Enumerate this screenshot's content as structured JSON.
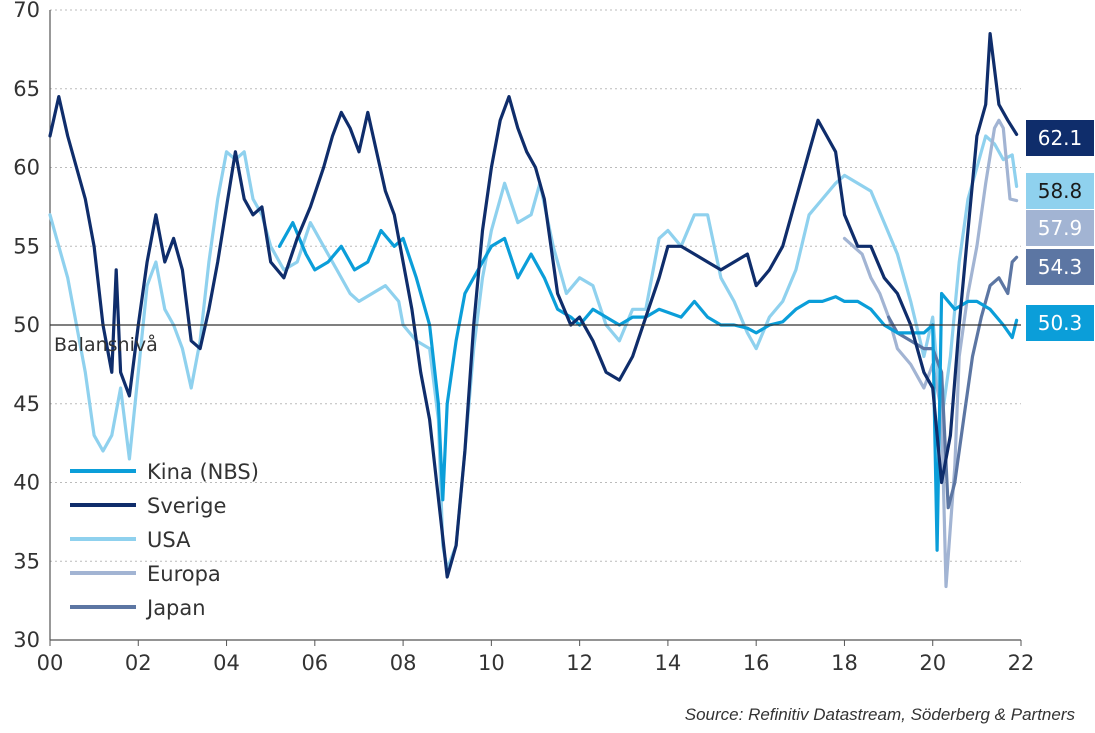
{
  "chart_data": {
    "type": "line",
    "x_ticks": [
      "00",
      "02",
      "04",
      "06",
      "08",
      "10",
      "12",
      "14",
      "16",
      "18",
      "20",
      "22"
    ],
    "y_ticks": [
      30,
      35,
      40,
      45,
      50,
      55,
      60,
      65,
      70
    ],
    "xlim": [
      2000,
      2022
    ],
    "ylim": [
      30,
      70
    ],
    "reference_line": {
      "value": 50,
      "label": "Balansnivå"
    },
    "grid": "horizontal dotted",
    "legend_position": "bottom-left",
    "source": "Source: Refinitiv Datastream, Söderberg & Partners",
    "series": [
      {
        "name": "Kina (NBS)",
        "color": "#0B9ED9",
        "end_value": "50.3",
        "points": [
          [
            2005.2,
            55.0
          ],
          [
            2005.5,
            56.5
          ],
          [
            2005.8,
            54.5
          ],
          [
            2006.0,
            53.5
          ],
          [
            2006.3,
            54.0
          ],
          [
            2006.6,
            55.0
          ],
          [
            2006.9,
            53.5
          ],
          [
            2007.2,
            54.0
          ],
          [
            2007.5,
            56.0
          ],
          [
            2007.8,
            55.0
          ],
          [
            2008.0,
            55.5
          ],
          [
            2008.3,
            53.0
          ],
          [
            2008.6,
            50.0
          ],
          [
            2008.8,
            45.0
          ],
          [
            2008.9,
            38.9
          ],
          [
            2009.0,
            45.0
          ],
          [
            2009.2,
            49.0
          ],
          [
            2009.4,
            52.0
          ],
          [
            2009.7,
            53.5
          ],
          [
            2010.0,
            55.0
          ],
          [
            2010.3,
            55.5
          ],
          [
            2010.6,
            53.0
          ],
          [
            2010.9,
            54.5
          ],
          [
            2011.2,
            53.0
          ],
          [
            2011.5,
            51.0
          ],
          [
            2011.8,
            50.5
          ],
          [
            2012.0,
            50.0
          ],
          [
            2012.3,
            51.0
          ],
          [
            2012.6,
            50.5
          ],
          [
            2012.9,
            50.0
          ],
          [
            2013.2,
            50.5
          ],
          [
            2013.5,
            50.5
          ],
          [
            2013.8,
            51.0
          ],
          [
            2014.0,
            50.8
          ],
          [
            2014.3,
            50.5
          ],
          [
            2014.6,
            51.5
          ],
          [
            2014.9,
            50.5
          ],
          [
            2015.2,
            50.0
          ],
          [
            2015.5,
            50.0
          ],
          [
            2015.8,
            49.8
          ],
          [
            2016.0,
            49.5
          ],
          [
            2016.3,
            50.0
          ],
          [
            2016.6,
            50.2
          ],
          [
            2016.9,
            51.0
          ],
          [
            2017.2,
            51.5
          ],
          [
            2017.5,
            51.5
          ],
          [
            2017.8,
            51.8
          ],
          [
            2018.0,
            51.5
          ],
          [
            2018.3,
            51.5
          ],
          [
            2018.6,
            51.0
          ],
          [
            2018.9,
            50.0
          ],
          [
            2019.2,
            49.5
          ],
          [
            2019.5,
            49.5
          ],
          [
            2019.8,
            49.5
          ],
          [
            2020.0,
            50.0
          ],
          [
            2020.1,
            35.7
          ],
          [
            2020.2,
            52.0
          ],
          [
            2020.5,
            51.0
          ],
          [
            2020.8,
            51.5
          ],
          [
            2021.0,
            51.5
          ],
          [
            2021.3,
            51.0
          ],
          [
            2021.6,
            50.0
          ],
          [
            2021.8,
            49.2
          ],
          [
            2021.9,
            50.3
          ]
        ]
      },
      {
        "name": "Sverige",
        "color": "#0F2D6B",
        "end_value": "62.1",
        "points": [
          [
            2000.0,
            62.0
          ],
          [
            2000.2,
            64.5
          ],
          [
            2000.4,
            62.0
          ],
          [
            2000.6,
            60.0
          ],
          [
            2000.8,
            58.0
          ],
          [
            2001.0,
            55.0
          ],
          [
            2001.2,
            50.0
          ],
          [
            2001.4,
            47.0
          ],
          [
            2001.5,
            53.5
          ],
          [
            2001.6,
            47.0
          ],
          [
            2001.8,
            45.5
          ],
          [
            2002.0,
            50.0
          ],
          [
            2002.2,
            54.0
          ],
          [
            2002.4,
            57.0
          ],
          [
            2002.6,
            54.0
          ],
          [
            2002.8,
            55.5
          ],
          [
            2003.0,
            53.5
          ],
          [
            2003.2,
            49.0
          ],
          [
            2003.4,
            48.5
          ],
          [
            2003.6,
            51.0
          ],
          [
            2003.8,
            54.0
          ],
          [
            2004.0,
            57.5
          ],
          [
            2004.2,
            61.0
          ],
          [
            2004.4,
            58.0
          ],
          [
            2004.6,
            57.0
          ],
          [
            2004.8,
            57.5
          ],
          [
            2005.0,
            54.0
          ],
          [
            2005.3,
            53.0
          ],
          [
            2005.6,
            55.5
          ],
          [
            2005.9,
            57.5
          ],
          [
            2006.2,
            60.0
          ],
          [
            2006.4,
            62.0
          ],
          [
            2006.6,
            63.5
          ],
          [
            2006.8,
            62.5
          ],
          [
            2007.0,
            61.0
          ],
          [
            2007.2,
            63.5
          ],
          [
            2007.4,
            61.0
          ],
          [
            2007.6,
            58.5
          ],
          [
            2007.8,
            57.0
          ],
          [
            2008.0,
            54.0
          ],
          [
            2008.2,
            51.0
          ],
          [
            2008.4,
            47.0
          ],
          [
            2008.6,
            44.0
          ],
          [
            2008.8,
            39.0
          ],
          [
            2009.0,
            34.0
          ],
          [
            2009.2,
            36.0
          ],
          [
            2009.4,
            42.0
          ],
          [
            2009.6,
            50.0
          ],
          [
            2009.8,
            56.0
          ],
          [
            2010.0,
            60.0
          ],
          [
            2010.2,
            63.0
          ],
          [
            2010.4,
            64.5
          ],
          [
            2010.6,
            62.5
          ],
          [
            2010.8,
            61.0
          ],
          [
            2011.0,
            60.0
          ],
          [
            2011.2,
            58.0
          ],
          [
            2011.5,
            52.0
          ],
          [
            2011.8,
            50.0
          ],
          [
            2012.0,
            50.5
          ],
          [
            2012.3,
            49.0
          ],
          [
            2012.6,
            47.0
          ],
          [
            2012.9,
            46.5
          ],
          [
            2013.2,
            48.0
          ],
          [
            2013.5,
            50.5
          ],
          [
            2013.8,
            53.0
          ],
          [
            2014.0,
            55.0
          ],
          [
            2014.3,
            55.0
          ],
          [
            2014.6,
            54.5
          ],
          [
            2014.9,
            54.0
          ],
          [
            2015.2,
            53.5
          ],
          [
            2015.5,
            54.0
          ],
          [
            2015.8,
            54.5
          ],
          [
            2016.0,
            52.5
          ],
          [
            2016.3,
            53.5
          ],
          [
            2016.6,
            55.0
          ],
          [
            2016.9,
            58.0
          ],
          [
            2017.2,
            61.0
          ],
          [
            2017.4,
            63.0
          ],
          [
            2017.6,
            62.0
          ],
          [
            2017.8,
            61.0
          ],
          [
            2018.0,
            57.0
          ],
          [
            2018.3,
            55.0
          ],
          [
            2018.6,
            55.0
          ],
          [
            2018.9,
            53.0
          ],
          [
            2019.2,
            52.0
          ],
          [
            2019.5,
            50.0
          ],
          [
            2019.8,
            47.0
          ],
          [
            2020.0,
            46.0
          ],
          [
            2020.2,
            40.0
          ],
          [
            2020.4,
            43.0
          ],
          [
            2020.6,
            50.0
          ],
          [
            2020.8,
            56.0
          ],
          [
            2021.0,
            62.0
          ],
          [
            2021.2,
            64.0
          ],
          [
            2021.3,
            68.5
          ],
          [
            2021.5,
            64.0
          ],
          [
            2021.7,
            63.0
          ],
          [
            2021.9,
            62.1
          ]
        ]
      },
      {
        "name": "USA",
        "color": "#8FD1EE",
        "end_value": "58.8",
        "points": [
          [
            2000.0,
            57.0
          ],
          [
            2000.2,
            55.0
          ],
          [
            2000.4,
            53.0
          ],
          [
            2000.6,
            50.0
          ],
          [
            2000.8,
            47.0
          ],
          [
            2001.0,
            43.0
          ],
          [
            2001.2,
            42.0
          ],
          [
            2001.4,
            43.0
          ],
          [
            2001.6,
            46.0
          ],
          [
            2001.8,
            41.5
          ],
          [
            2002.0,
            47.0
          ],
          [
            2002.2,
            52.5
          ],
          [
            2002.4,
            54.0
          ],
          [
            2002.6,
            51.0
          ],
          [
            2002.8,
            50.0
          ],
          [
            2003.0,
            48.5
          ],
          [
            2003.2,
            46.0
          ],
          [
            2003.4,
            49.0
          ],
          [
            2003.6,
            54.0
          ],
          [
            2003.8,
            58.0
          ],
          [
            2004.0,
            61.0
          ],
          [
            2004.2,
            60.5
          ],
          [
            2004.4,
            61.0
          ],
          [
            2004.6,
            58.0
          ],
          [
            2004.8,
            57.0
          ],
          [
            2005.0,
            55.0
          ],
          [
            2005.3,
            53.5
          ],
          [
            2005.6,
            54.0
          ],
          [
            2005.9,
            56.5
          ],
          [
            2006.2,
            55.0
          ],
          [
            2006.5,
            53.5
          ],
          [
            2006.8,
            52.0
          ],
          [
            2007.0,
            51.5
          ],
          [
            2007.3,
            52.0
          ],
          [
            2007.6,
            52.5
          ],
          [
            2007.9,
            51.5
          ],
          [
            2008.0,
            50.0
          ],
          [
            2008.3,
            49.0
          ],
          [
            2008.6,
            48.5
          ],
          [
            2008.8,
            44.0
          ],
          [
            2008.9,
            36.0
          ],
          [
            2009.0,
            34.5
          ],
          [
            2009.2,
            36.0
          ],
          [
            2009.4,
            42.0
          ],
          [
            2009.6,
            48.5
          ],
          [
            2009.8,
            53.0
          ],
          [
            2010.0,
            56.0
          ],
          [
            2010.3,
            59.0
          ],
          [
            2010.6,
            56.5
          ],
          [
            2010.9,
            57.0
          ],
          [
            2011.1,
            59.0
          ],
          [
            2011.4,
            55.0
          ],
          [
            2011.7,
            52.0
          ],
          [
            2012.0,
            53.0
          ],
          [
            2012.3,
            52.5
          ],
          [
            2012.6,
            50.0
          ],
          [
            2012.9,
            49.0
          ],
          [
            2013.2,
            51.0
          ],
          [
            2013.5,
            51.0
          ],
          [
            2013.8,
            55.5
          ],
          [
            2014.0,
            56.0
          ],
          [
            2014.3,
            55.0
          ],
          [
            2014.6,
            57.0
          ],
          [
            2014.9,
            57.0
          ],
          [
            2015.2,
            53.0
          ],
          [
            2015.5,
            51.5
          ],
          [
            2015.8,
            49.5
          ],
          [
            2016.0,
            48.5
          ],
          [
            2016.3,
            50.5
          ],
          [
            2016.6,
            51.5
          ],
          [
            2016.9,
            53.5
          ],
          [
            2017.2,
            57.0
          ],
          [
            2017.5,
            58.0
          ],
          [
            2017.8,
            59.0
          ],
          [
            2018.0,
            59.5
          ],
          [
            2018.3,
            59.0
          ],
          [
            2018.6,
            58.5
          ],
          [
            2018.9,
            56.5
          ],
          [
            2019.2,
            54.5
          ],
          [
            2019.5,
            51.5
          ],
          [
            2019.8,
            48.0
          ],
          [
            2020.0,
            50.5
          ],
          [
            2020.2,
            44.0
          ],
          [
            2020.4,
            48.0
          ],
          [
            2020.6,
            54.0
          ],
          [
            2020.8,
            58.0
          ],
          [
            2021.0,
            60.0
          ],
          [
            2021.2,
            62.0
          ],
          [
            2021.4,
            61.5
          ],
          [
            2021.6,
            60.5
          ],
          [
            2021.8,
            60.8
          ],
          [
            2021.9,
            58.8
          ]
        ]
      },
      {
        "name": "Europa",
        "color": "#A2B4D3",
        "end_value": "57.9",
        "points": [
          [
            2018.0,
            55.5
          ],
          [
            2018.2,
            55.0
          ],
          [
            2018.4,
            54.5
          ],
          [
            2018.6,
            53.0
          ],
          [
            2018.8,
            52.0
          ],
          [
            2019.0,
            50.5
          ],
          [
            2019.2,
            48.5
          ],
          [
            2019.5,
            47.5
          ],
          [
            2019.8,
            46.0
          ],
          [
            2020.0,
            47.5
          ],
          [
            2020.2,
            44.5
          ],
          [
            2020.3,
            33.4
          ],
          [
            2020.5,
            41.0
          ],
          [
            2020.6,
            48.0
          ],
          [
            2020.8,
            52.0
          ],
          [
            2021.0,
            55.0
          ],
          [
            2021.2,
            59.0
          ],
          [
            2021.4,
            62.5
          ],
          [
            2021.5,
            63.0
          ],
          [
            2021.6,
            62.5
          ],
          [
            2021.75,
            58.0
          ],
          [
            2021.9,
            57.9
          ]
        ]
      },
      {
        "name": "Japan",
        "color": "#5C76A3",
        "end_value": "54.3",
        "points": [
          [
            2019.0,
            50.5
          ],
          [
            2019.2,
            49.5
          ],
          [
            2019.5,
            49.0
          ],
          [
            2019.8,
            48.5
          ],
          [
            2020.0,
            48.5
          ],
          [
            2020.2,
            47.0
          ],
          [
            2020.35,
            38.4
          ],
          [
            2020.5,
            40.0
          ],
          [
            2020.7,
            44.0
          ],
          [
            2020.9,
            48.0
          ],
          [
            2021.1,
            50.5
          ],
          [
            2021.3,
            52.5
          ],
          [
            2021.5,
            53.0
          ],
          [
            2021.7,
            52.0
          ],
          [
            2021.8,
            54.0
          ],
          [
            2021.9,
            54.3
          ]
        ]
      }
    ]
  }
}
